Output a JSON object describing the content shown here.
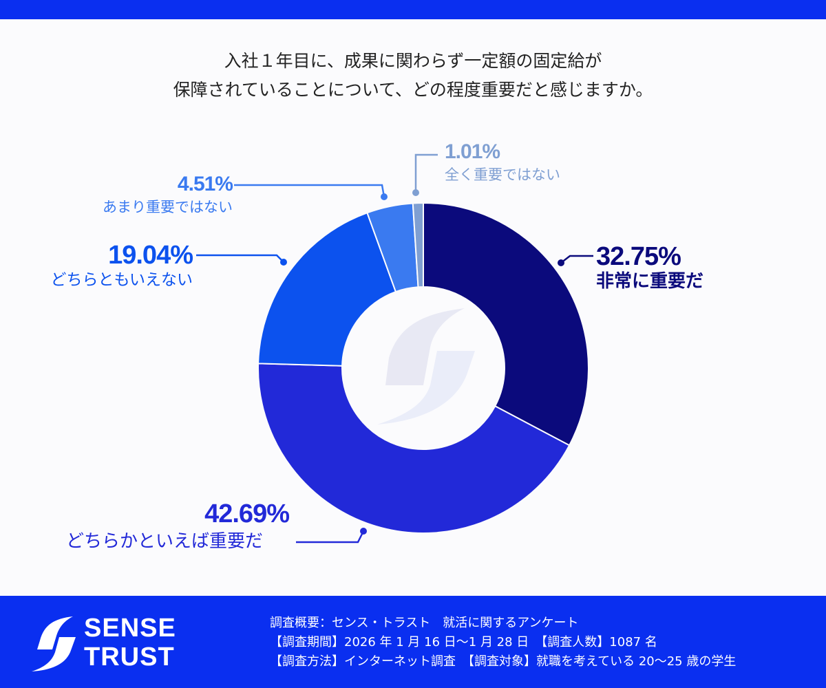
{
  "title_lines": [
    "入社１年目に、成果に関わらず一定額の固定給が",
    "保障されていることについて、どの程度重要だと感じますか。"
  ],
  "chart_data": {
    "type": "pie",
    "variant": "donut",
    "title": "入社１年目に、成果に関わらず一定額の固定給が保障されていることについて、どの程度重要だと感じますか。",
    "start": "top",
    "direction": "clockwise",
    "slices": [
      {
        "label": "非常に重要だ",
        "value": 32.75,
        "percent_label": "32.75%",
        "color": "#0b0a7c"
      },
      {
        "label": "どちらかといえば重要だ",
        "value": 42.69,
        "percent_label": "42.69%",
        "color": "#2229d8"
      },
      {
        "label": "どちらともいえない",
        "value": 19.04,
        "percent_label": "19.04%",
        "color": "#0c52ee"
      },
      {
        "label": "あまり重要ではない",
        "value": 4.51,
        "percent_label": "4.51%",
        "color": "#3a7af0"
      },
      {
        "label": "全く重要ではない",
        "value": 1.01,
        "percent_label": "1.01%",
        "color": "#7f9fd2"
      }
    ]
  },
  "footer": {
    "brand_line1": "SENSE",
    "brand_line2": "TRUST",
    "info": [
      "調査概要：センス・トラスト　就活に関するアンケート",
      "【調査期間】2026 年 1 月 16 日～1 月 28 日　【調査人数】1087 名",
      "【調査方法】インターネット調査　【調査対象】就職を考えている 20～25 歳の学生"
    ]
  },
  "colors": {
    "brand": "#0a2ff0"
  }
}
